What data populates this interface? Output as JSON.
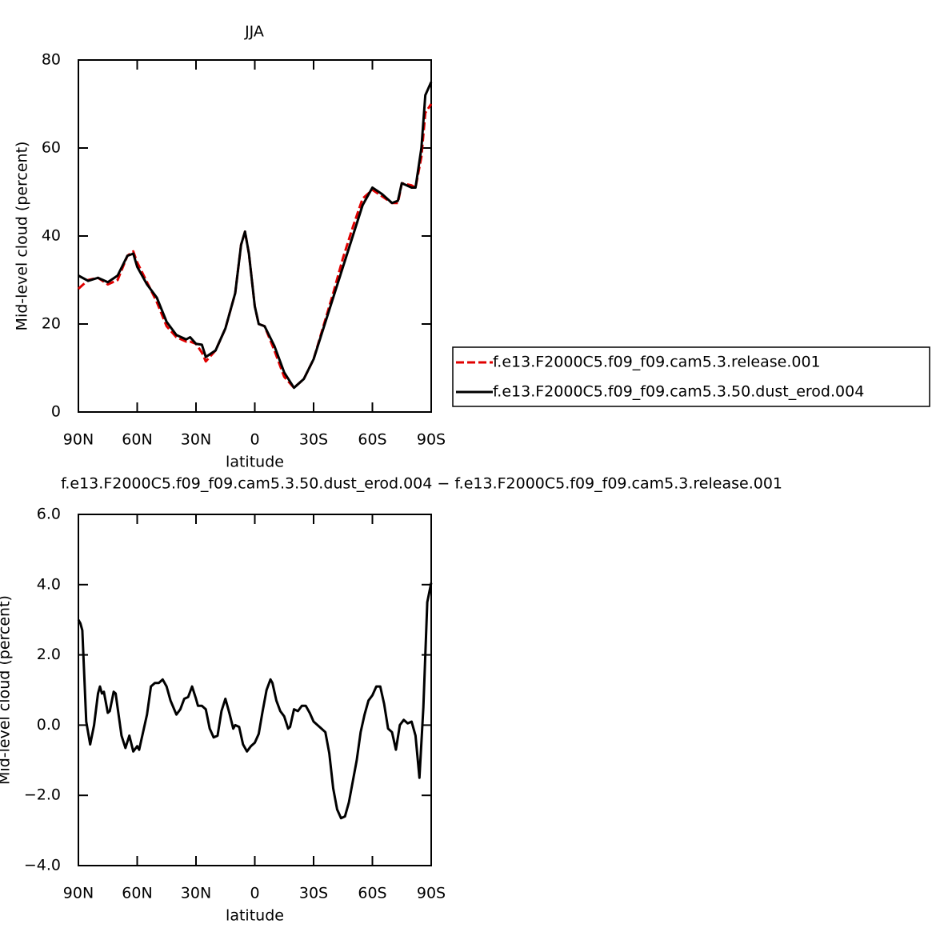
{
  "chart_data": [
    {
      "type": "line",
      "title": "JJA",
      "xlabel": "latitude",
      "ylabel": "Mid-level cloud (percent)",
      "xlim": [
        90,
        -90
      ],
      "ylim": [
        0,
        80
      ],
      "xticks": [
        {
          "value": 90,
          "label": "90N"
        },
        {
          "value": 60,
          "label": "60N"
        },
        {
          "value": 30,
          "label": "30N"
        },
        0,
        {
          "value": -30,
          "label": "30S"
        },
        {
          "value": -60,
          "label": "60S"
        },
        {
          "value": -90,
          "label": "90S"
        }
      ],
      "yticks": [
        0,
        20,
        40,
        60,
        80
      ],
      "legend": "right",
      "x": [
        90,
        85,
        80,
        75,
        70,
        65,
        62,
        60,
        55,
        50,
        45,
        40,
        35,
        33,
        30,
        27,
        25,
        20,
        15,
        10,
        7,
        5,
        3,
        0,
        -2,
        -5,
        -10,
        -15,
        -20,
        -25,
        -30,
        -35,
        -40,
        -45,
        -50,
        -55,
        -60,
        -65,
        -70,
        -73,
        -75,
        -80,
        -82,
        -85,
        -87,
        -90
      ],
      "series": [
        {
          "name": "f.e13.F2000C5.f09_f09.cam5.3.release.001",
          "color": "#e00000",
          "style": "dashed",
          "values": [
            28,
            30,
            30.5,
            29,
            30,
            35.5,
            36.5,
            34,
            29.5,
            25,
            19.5,
            17,
            16,
            16,
            15.5,
            13.5,
            11.5,
            14,
            19,
            27,
            38,
            41,
            36,
            24,
            20,
            19.5,
            14,
            8,
            5.5,
            7.5,
            12,
            19.5,
            27,
            35,
            42,
            48.5,
            50.5,
            49,
            47.5,
            47.5,
            52,
            51.5,
            51,
            58,
            68,
            70
          ]
        },
        {
          "name": "f.e13.F2000C5.f09_f09.cam5.3.50.dust_erod.004",
          "color": "#000000",
          "style": "solid",
          "values": [
            31,
            29.8,
            30.5,
            29.5,
            31,
            35.5,
            36,
            33,
            29,
            26,
            20.5,
            17.5,
            16.5,
            17,
            15.5,
            15.3,
            12.5,
            14,
            19,
            27,
            38,
            41,
            36,
            24,
            20,
            19.5,
            15,
            9,
            5.5,
            7.5,
            12,
            19,
            26,
            33,
            40,
            47,
            51,
            49.5,
            47.5,
            48,
            52,
            51,
            51,
            60,
            72,
            75
          ]
        }
      ]
    },
    {
      "type": "line",
      "title": "f.e13.F2000C5.f09_f09.cam5.3.50.dust_erod.004 − f.e13.F2000C5.f09_f09.cam5.3.release.001",
      "xlabel": "latitude",
      "ylabel": "Mid-level cloud (percent)",
      "xlim": [
        90,
        -90
      ],
      "ylim": [
        -4,
        6
      ],
      "xticks": [
        {
          "value": 90,
          "label": "90N"
        },
        {
          "value": 60,
          "label": "60N"
        },
        {
          "value": 30,
          "label": "30N"
        },
        0,
        {
          "value": -30,
          "label": "30S"
        },
        {
          "value": -60,
          "label": "60S"
        },
        {
          "value": -90,
          "label": "90S"
        }
      ],
      "yticks": [
        {
          "value": -4,
          "label": "−4.0"
        },
        {
          "value": -2,
          "label": "−2.0"
        },
        {
          "value": 0,
          "label": "0.0"
        },
        {
          "value": 2,
          "label": "2.0"
        },
        {
          "value": 4,
          "label": "4.0"
        },
        {
          "value": 6,
          "label": "6.0"
        }
      ],
      "x": [
        90,
        89,
        88,
        86,
        84,
        82,
        80,
        79,
        78,
        77,
        75,
        74,
        72,
        71,
        68,
        66,
        64,
        62,
        60,
        59,
        57,
        55,
        53,
        51,
        49,
        47,
        45,
        43,
        40,
        38,
        36,
        34,
        32,
        30,
        29,
        27,
        25,
        23,
        21,
        19,
        17,
        15,
        13,
        11,
        10,
        8,
        6,
        4,
        2,
        0,
        -2,
        -4,
        -6,
        -8,
        -9,
        -11,
        -13,
        -15,
        -17,
        -18,
        -20,
        -22,
        -24,
        -26,
        -28,
        -30,
        -32,
        -34,
        -36,
        -38,
        -40,
        -42,
        -44,
        -46,
        -48,
        -50,
        -52,
        -54,
        -56,
        -58,
        -60,
        -62,
        -64,
        -66,
        -68,
        -70,
        -72,
        -74,
        -76,
        -78,
        -80,
        -82,
        -84,
        -86,
        -88,
        -90
      ],
      "series": [
        {
          "color": "#000000",
          "style": "solid",
          "values": [
            3.0,
            2.9,
            2.7,
            0.1,
            -0.55,
            0.0,
            0.9,
            1.1,
            0.9,
            0.95,
            0.35,
            0.4,
            0.95,
            0.9,
            -0.3,
            -0.65,
            -0.3,
            -0.75,
            -0.6,
            -0.7,
            -0.2,
            0.3,
            1.1,
            1.2,
            1.2,
            1.3,
            1.1,
            0.7,
            0.3,
            0.45,
            0.75,
            0.8,
            1.1,
            0.75,
            0.55,
            0.55,
            0.45,
            -0.1,
            -0.35,
            -0.3,
            0.4,
            0.75,
            0.35,
            -0.1,
            0.0,
            -0.05,
            -0.55,
            -0.75,
            -0.6,
            -0.5,
            -0.25,
            0.4,
            1.0,
            1.3,
            1.2,
            0.7,
            0.4,
            0.25,
            -0.1,
            -0.05,
            0.45,
            0.4,
            0.55,
            0.55,
            0.35,
            0.1,
            0.0,
            -0.1,
            -0.2,
            -0.8,
            -1.8,
            -2.4,
            -2.65,
            -2.6,
            -2.2,
            -1.6,
            -1.0,
            -0.2,
            0.3,
            0.7,
            0.85,
            1.1,
            1.1,
            0.6,
            -0.1,
            -0.2,
            -0.7,
            0.0,
            0.15,
            0.05,
            0.1,
            -0.3,
            -1.5,
            0.5,
            3.5,
            4.05
          ]
        }
      ]
    }
  ]
}
